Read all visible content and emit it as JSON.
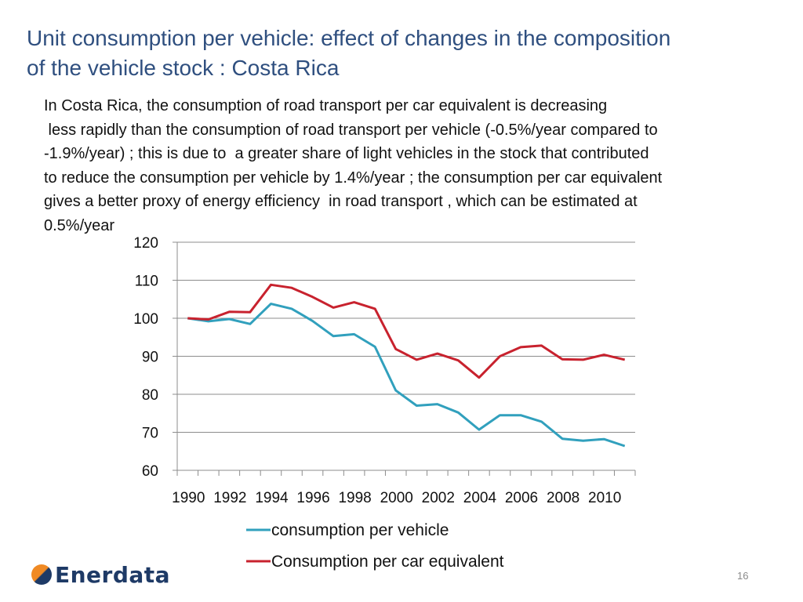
{
  "slide": {
    "title_lines": [
      "Unit consumption per vehicle: effect of changes in the composition",
      "of the vehicle stock : Costa Rica"
    ],
    "body_lines": [
      "In Costa Rica, the consumption of road transport per car equivalent is decreasing",
      " less rapidly than the consumption of road transport per vehicle (-0.5%/year compared to",
      "-1.9%/year) ; this is due to  a greater share of light vehicles in the stock that contributed",
      "to reduce the consumption per vehicle by 1.4%/year ; the consumption per car equivalent",
      "gives a better proxy of energy efficiency  in road transport , which can be estimated at",
      "0.5%/year"
    ],
    "logo_text": "Enerdata",
    "page_number": "16"
  },
  "chart_data": {
    "type": "line",
    "x": [
      1990,
      1991,
      1992,
      1993,
      1994,
      1995,
      1996,
      1997,
      1998,
      1999,
      2000,
      2001,
      2002,
      2003,
      2004,
      2005,
      2006,
      2007,
      2008,
      2009,
      2010,
      2011
    ],
    "x_tick_labels": [
      "1990",
      "1992",
      "1994",
      "1996",
      "1998",
      "2000",
      "2002",
      "2004",
      "2006",
      "2008",
      "2010"
    ],
    "ylim": [
      60,
      120
    ],
    "y_ticks": [
      60,
      70,
      80,
      90,
      100,
      110,
      120
    ],
    "grid": "horizontal",
    "legend_position": "bottom",
    "series": [
      {
        "name": "consumption per vehicle",
        "color": "#31a0bd",
        "values": [
          100,
          99.2,
          99.8,
          98.5,
          103.8,
          102.5,
          99.3,
          95.3,
          95.8,
          92.5,
          81.0,
          77.0,
          77.4,
          75.2,
          70.7,
          74.5,
          74.5,
          72.8,
          68.3,
          67.8,
          68.2,
          66.4
        ]
      },
      {
        "name": "Consumption per car equivalent",
        "color": "#c8222e",
        "values": [
          100,
          99.7,
          101.7,
          101.6,
          108.8,
          108.0,
          105.6,
          102.8,
          104.2,
          102.5,
          91.9,
          89.1,
          90.7,
          88.9,
          84.4,
          90.0,
          92.4,
          92.8,
          89.2,
          89.1,
          90.4,
          89.1
        ]
      }
    ]
  }
}
